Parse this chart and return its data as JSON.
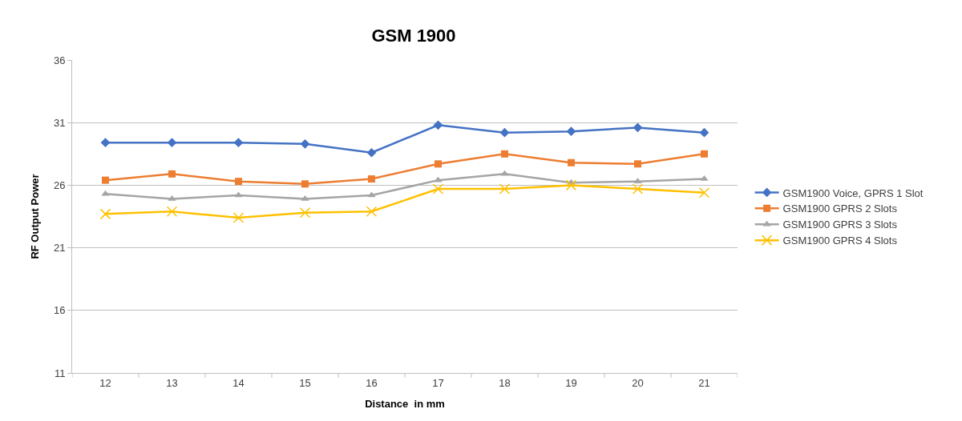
{
  "chart_data": {
    "type": "line",
    "title": "GSM 1900",
    "xlabel": "Distance  in mm",
    "ylabel": "RF Output Power",
    "categories": [
      "12",
      "13",
      "14",
      "15",
      "16",
      "17",
      "18",
      "19",
      "20",
      "21"
    ],
    "series": [
      {
        "name": "GSM1900 Voice, GPRS 1 Slot",
        "color": "#4472c4",
        "marker": "diamond",
        "values": [
          29.4,
          29.4,
          29.4,
          29.3,
          28.6,
          30.8,
          30.2,
          30.3,
          30.6,
          30.2
        ]
      },
      {
        "name": "GSM1900 GPRS 2 Slots",
        "color": "#ed7d31",
        "marker": "square",
        "values": [
          26.4,
          26.9,
          26.3,
          26.1,
          26.5,
          27.7,
          28.5,
          27.8,
          27.7,
          28.5
        ]
      },
      {
        "name": "GSM1900 GPRS 3 Slots",
        "color": "#a5a5a5",
        "marker": "triangle",
        "values": [
          25.3,
          24.9,
          25.2,
          24.9,
          25.2,
          26.4,
          26.9,
          26.2,
          26.3,
          26.5
        ]
      },
      {
        "name": "GSM1900 GPRS 4 Slots",
        "color": "#ffc000",
        "marker": "cross",
        "values": [
          23.7,
          23.9,
          23.4,
          23.8,
          23.9,
          25.7,
          25.7,
          26.0,
          25.7,
          25.4
        ]
      }
    ],
    "ylim": [
      11,
      36
    ],
    "yticks": [
      11,
      16,
      21,
      26,
      31,
      36
    ],
    "grid": "y",
    "legend": "right",
    "line_style": "solid"
  }
}
